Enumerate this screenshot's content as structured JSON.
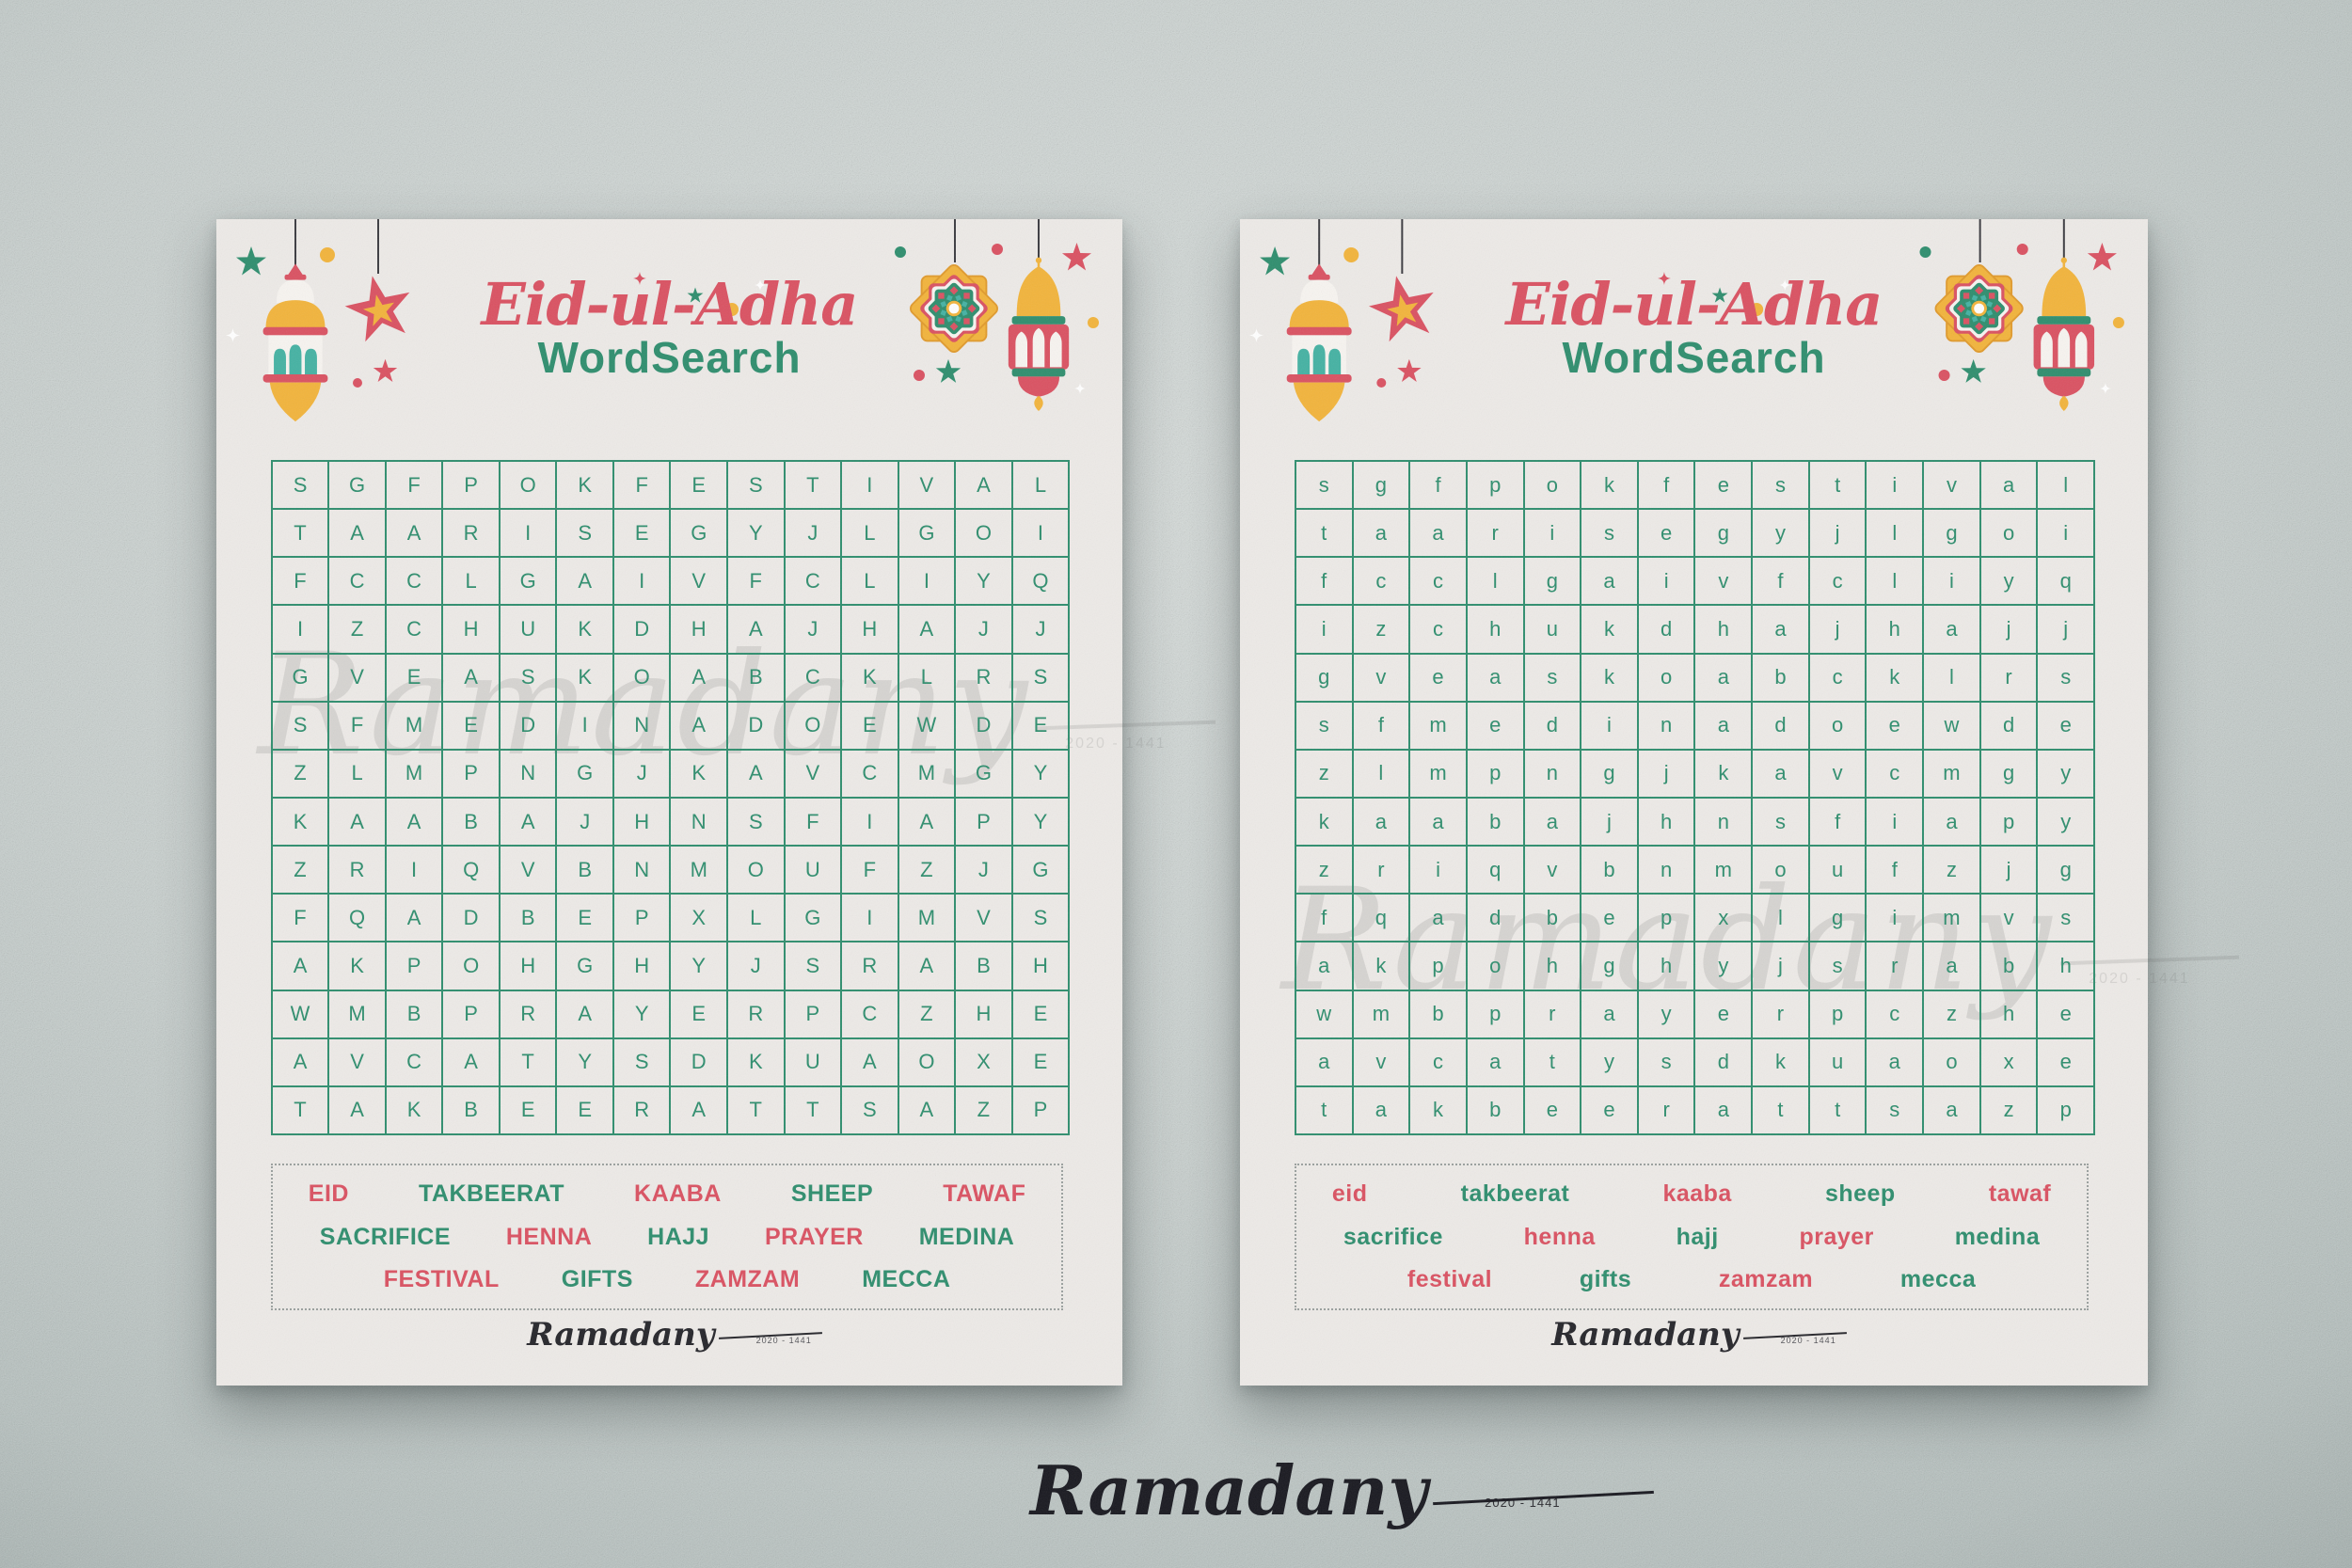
{
  "colors": {
    "red": "#da5262",
    "green": "#2f8e6e",
    "yellow": "#f2b43c",
    "teal": "#45b2a3",
    "paper": "#edeae7",
    "ink": "#191920"
  },
  "sheets": [
    {
      "title": "Eid-ul-Adha",
      "subtitle": "WordSearch",
      "grid_rows": [
        "SGFPOKFESTIVAL",
        "TAARISEGYJLGOI",
        "FCCLGAIVFCLIYQ",
        "IZCHUKDHAJHAJJ",
        "GVEASKOABCKLRS",
        "SFMEDINADOEWDE",
        "ZLMPNGJKAVCMGY",
        "KAABAJHNSFIAPY",
        "ZRIQVBNMOUFZJG",
        "FQADBEPXLGIMVS",
        "AKPOHGHYJSRABH",
        "WMBPRAYERPCZHE",
        "AVCATYSDKUAOXE",
        "TAKBEERATTSAZP"
      ],
      "word_rows": [
        [
          {
            "text": "EID",
            "color": "red"
          },
          {
            "text": "TAKBEERAT",
            "color": "green"
          },
          {
            "text": "KAABA",
            "color": "red"
          },
          {
            "text": "SHEEP",
            "color": "green"
          },
          {
            "text": "TAWAF",
            "color": "red"
          }
        ],
        [
          {
            "text": "SACRIFICE",
            "color": "green"
          },
          {
            "text": "HENNA",
            "color": "red"
          },
          {
            "text": "HAJJ",
            "color": "green"
          },
          {
            "text": "PRAYER",
            "color": "red"
          },
          {
            "text": "MEDINA",
            "color": "green"
          }
        ],
        [
          {
            "text": "FESTIVAL",
            "color": "red"
          },
          {
            "text": "GIFTS",
            "color": "green"
          },
          {
            "text": "ZAMZAM",
            "color": "red"
          },
          {
            "text": "MECCA",
            "color": "green"
          }
        ]
      ],
      "watermark": {
        "text": "Ramadany",
        "subtext": "2020 - 1441"
      },
      "signature": {
        "text": "Ramadany",
        "subtext": "2020 - 1441"
      }
    },
    {
      "title": "Eid-ul-Adha",
      "subtitle": "WordSearch",
      "grid_rows": [
        "sgfpokfestival",
        "taarisegyjlgoi",
        "fcclgaivfcliyq",
        "izchukdhajhajj",
        "gveaskoabcklrs",
        "sfmedinadoewde",
        "zlmpngjkavcmgy",
        "kaabajhnsfiapy",
        "zriqvbnmoufzjg",
        "fqadbepxlgimvs",
        "akpohghyjsrabh",
        "wmbprayerpczhe",
        "avcatysdkuaoxe",
        "takbeerattsazp"
      ],
      "word_rows": [
        [
          {
            "text": "eid",
            "color": "red"
          },
          {
            "text": "takbeerat",
            "color": "green"
          },
          {
            "text": "kaaba",
            "color": "red"
          },
          {
            "text": "sheep",
            "color": "green"
          },
          {
            "text": "tawaf",
            "color": "red"
          }
        ],
        [
          {
            "text": "sacrifice",
            "color": "green"
          },
          {
            "text": "henna",
            "color": "red"
          },
          {
            "text": "hajj",
            "color": "green"
          },
          {
            "text": "prayer",
            "color": "red"
          },
          {
            "text": "medina",
            "color": "green"
          }
        ],
        [
          {
            "text": "festival",
            "color": "red"
          },
          {
            "text": "gifts",
            "color": "green"
          },
          {
            "text": "zamzam",
            "color": "red"
          },
          {
            "text": "mecca",
            "color": "green"
          }
        ]
      ],
      "watermark": {
        "text": "Ramadany",
        "subtext": "2020 - 1441"
      },
      "signature": {
        "text": "Ramadany",
        "subtext": "2020 - 1441"
      }
    }
  ],
  "footer": {
    "signature": "Ramadany",
    "subtext": "2020 - 1441"
  }
}
